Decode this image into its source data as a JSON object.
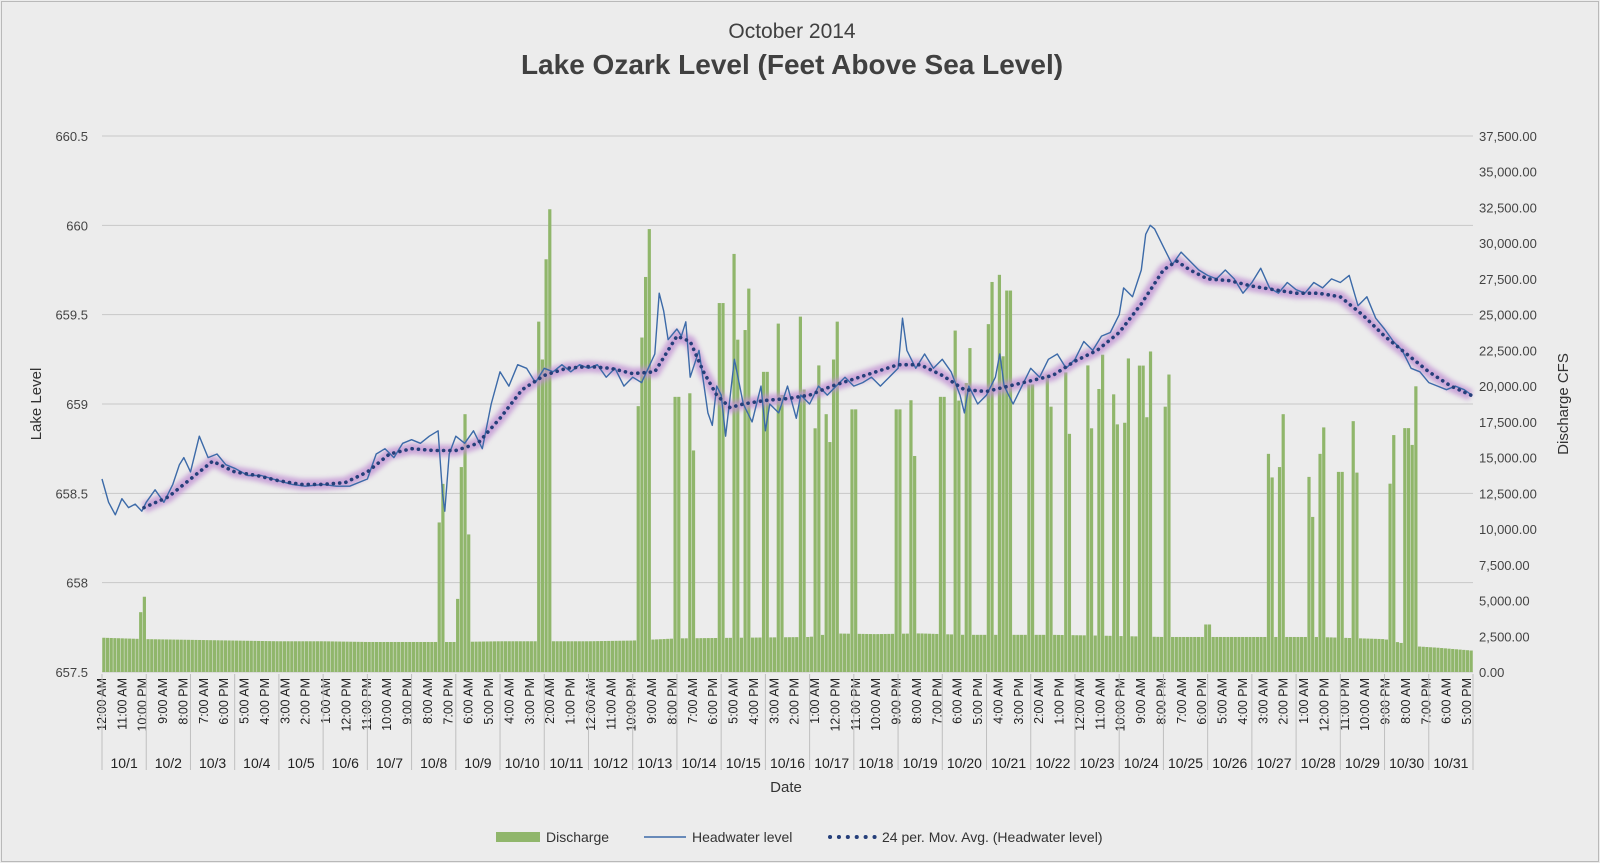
{
  "chart_data": {
    "type": "bar+line",
    "subtitle": "October 2014",
    "title": "Lake Ozark Level (Feet Above Sea Level)",
    "xlabel": "Date",
    "ylabel_left": "Lake Level",
    "ylabel_right": "Discharge CFS",
    "ylim_left": [
      657.5,
      660.5
    ],
    "ylim_right": [
      0,
      37500
    ],
    "yticks_left": [
      "657.5",
      "658",
      "658.5",
      "659",
      "659.5",
      "660",
      "660.5"
    ],
    "yticks_right": [
      "0.00",
      "2,500.00",
      "5,000.00",
      "7,500.00",
      "10,000.00",
      "12,500.00",
      "15,000.00",
      "17,500.00",
      "20,000.00",
      "22,500.00",
      "25,000.00",
      "27,500.00",
      "30,000.00",
      "32,500.00",
      "35,000.00",
      "37,500.00"
    ],
    "time_tick_labels": [
      "12:00 AM",
      "11:00 AM",
      "10:00 PM",
      "9:00 AM",
      "8:00 PM",
      "7:00 AM",
      "6:00 PM",
      "5:00 AM",
      "4:00 PM",
      "3:00 AM",
      "2:00 PM",
      "1:00 AM",
      "12:00 PM",
      "11:00 PM",
      "10:00 AM",
      "9:00 PM",
      "8:00 AM",
      "7:00 PM",
      "6:00 AM",
      "5:00 PM",
      "4:00 AM",
      "3:00 PM",
      "2:00 AM",
      "1:00 PM",
      "12:00 AM",
      "11:00 AM",
      "10:00 PM",
      "9:00 AM",
      "8:00 PM",
      "7:00 AM",
      "6:00 PM",
      "5:00 AM",
      "4:00 PM",
      "3:00 AM",
      "2:00 PM",
      "1:00 AM",
      "12:00 PM",
      "11:00 PM",
      "10:00 AM",
      "9:00 PM",
      "8:00 AM",
      "7:00 PM",
      "6:00 AM",
      "5:00 PM",
      "4:00 AM",
      "3:00 PM",
      "2:00 AM",
      "1:00 PM",
      "12:00 AM",
      "11:00 AM",
      "10:00 PM",
      "9:00 AM",
      "8:00 PM",
      "7:00 AM",
      "6:00 PM",
      "5:00 AM",
      "4:00 PM",
      "3:00 AM",
      "2:00 PM",
      "1:00 AM",
      "12:00 PM",
      "11:00 PM",
      "10:00 AM",
      "9:00 PM",
      "8:00 AM",
      "7:00 PM",
      "6:00 AM",
      "5:00 PM"
    ],
    "days": [
      "10/1",
      "10/2",
      "10/3",
      "10/4",
      "10/5",
      "10/6",
      "10/7",
      "10/8",
      "10/9",
      "10/10",
      "10/11",
      "10/12",
      "10/13",
      "10/14",
      "10/15",
      "10/16",
      "10/17",
      "10/18",
      "10/19",
      "10/20",
      "10/21",
      "10/22",
      "10/23",
      "10/24",
      "10/25",
      "10/26",
      "10/27",
      "10/28",
      "10/29",
      "10/30",
      "10/31"
    ],
    "legend": [
      "Discharge",
      "Headwater level",
      "24 per. Mov. Avg. (Headwater level)"
    ],
    "legend_position": "bottom",
    "grid": true,
    "headwater_daily": [
      [
        0.0,
        658.58
      ],
      [
        0.15,
        658.45
      ],
      [
        0.3,
        658.38
      ],
      [
        0.45,
        658.47
      ],
      [
        0.6,
        658.42
      ],
      [
        0.75,
        658.44
      ],
      [
        0.9,
        658.4
      ],
      [
        1.0,
        658.45
      ],
      [
        1.2,
        658.52
      ],
      [
        1.4,
        658.45
      ],
      [
        1.6,
        658.55
      ],
      [
        1.75,
        658.66
      ],
      [
        1.85,
        658.7
      ],
      [
        2.0,
        658.62
      ],
      [
        2.2,
        658.82
      ],
      [
        2.4,
        658.7
      ],
      [
        2.6,
        658.72
      ],
      [
        2.8,
        658.66
      ],
      [
        3.0,
        658.64
      ],
      [
        3.3,
        658.6
      ],
      [
        3.6,
        658.6
      ],
      [
        4.0,
        658.57
      ],
      [
        4.3,
        658.55
      ],
      [
        4.6,
        658.54
      ],
      [
        5.0,
        658.55
      ],
      [
        5.3,
        658.54
      ],
      [
        5.6,
        658.54
      ],
      [
        6.0,
        658.58
      ],
      [
        6.2,
        658.72
      ],
      [
        6.4,
        658.75
      ],
      [
        6.6,
        658.7
      ],
      [
        6.8,
        658.78
      ],
      [
        7.0,
        658.8
      ],
      [
        7.2,
        658.78
      ],
      [
        7.4,
        658.82
      ],
      [
        7.6,
        658.85
      ],
      [
        7.7,
        658.5
      ],
      [
        7.75,
        658.4
      ],
      [
        7.85,
        658.72
      ],
      [
        8.0,
        658.82
      ],
      [
        8.2,
        658.78
      ],
      [
        8.4,
        658.85
      ],
      [
        8.6,
        658.75
      ],
      [
        8.8,
        659.0
      ],
      [
        9.0,
        659.18
      ],
      [
        9.2,
        659.1
      ],
      [
        9.4,
        659.22
      ],
      [
        9.6,
        659.2
      ],
      [
        9.8,
        659.12
      ],
      [
        10.0,
        659.2
      ],
      [
        10.2,
        659.18
      ],
      [
        10.4,
        659.22
      ],
      [
        10.6,
        659.18
      ],
      [
        10.8,
        659.22
      ],
      [
        11.0,
        659.2
      ],
      [
        11.2,
        659.22
      ],
      [
        11.4,
        659.15
      ],
      [
        11.6,
        659.2
      ],
      [
        11.8,
        659.1
      ],
      [
        12.0,
        659.15
      ],
      [
        12.2,
        659.12
      ],
      [
        12.35,
        659.2
      ],
      [
        12.5,
        659.28
      ],
      [
        12.6,
        659.62
      ],
      [
        12.7,
        659.52
      ],
      [
        12.8,
        659.36
      ],
      [
        13.0,
        659.42
      ],
      [
        13.1,
        659.38
      ],
      [
        13.2,
        659.46
      ],
      [
        13.3,
        659.15
      ],
      [
        13.5,
        659.3
      ],
      [
        13.7,
        658.95
      ],
      [
        13.8,
        658.88
      ],
      [
        13.9,
        659.1
      ],
      [
        14.0,
        659.05
      ],
      [
        14.1,
        658.82
      ],
      [
        14.3,
        659.25
      ],
      [
        14.5,
        659.0
      ],
      [
        14.7,
        658.9
      ],
      [
        14.9,
        659.1
      ],
      [
        15.0,
        658.85
      ],
      [
        15.1,
        659.0
      ],
      [
        15.3,
        658.95
      ],
      [
        15.5,
        659.1
      ],
      [
        15.7,
        658.92
      ],
      [
        15.8,
        659.05
      ],
      [
        16.0,
        659.0
      ],
      [
        16.2,
        659.1
      ],
      [
        16.4,
        659.05
      ],
      [
        16.6,
        659.1
      ],
      [
        16.8,
        659.15
      ],
      [
        17.0,
        659.1
      ],
      [
        17.2,
        659.12
      ],
      [
        17.4,
        659.15
      ],
      [
        17.6,
        659.1
      ],
      [
        17.8,
        659.15
      ],
      [
        18.0,
        659.2
      ],
      [
        18.1,
        659.48
      ],
      [
        18.2,
        659.3
      ],
      [
        18.4,
        659.2
      ],
      [
        18.6,
        659.28
      ],
      [
        18.8,
        659.2
      ],
      [
        19.0,
        659.25
      ],
      [
        19.2,
        659.18
      ],
      [
        19.4,
        659.05
      ],
      [
        19.5,
        658.95
      ],
      [
        19.6,
        659.1
      ],
      [
        19.8,
        659.0
      ],
      [
        20.0,
        659.05
      ],
      [
        20.2,
        659.15
      ],
      [
        20.3,
        659.28
      ],
      [
        20.4,
        659.1
      ],
      [
        20.6,
        659.0
      ],
      [
        20.8,
        659.1
      ],
      [
        21.0,
        659.2
      ],
      [
        21.2,
        659.15
      ],
      [
        21.4,
        659.25
      ],
      [
        21.6,
        659.28
      ],
      [
        21.8,
        659.2
      ],
      [
        22.0,
        659.25
      ],
      [
        22.2,
        659.35
      ],
      [
        22.4,
        659.3
      ],
      [
        22.6,
        659.38
      ],
      [
        22.8,
        659.4
      ],
      [
        23.0,
        659.5
      ],
      [
        23.1,
        659.65
      ],
      [
        23.3,
        659.6
      ],
      [
        23.5,
        659.75
      ],
      [
        23.6,
        659.95
      ],
      [
        23.7,
        660.0
      ],
      [
        23.8,
        659.98
      ],
      [
        24.0,
        659.88
      ],
      [
        24.2,
        659.78
      ],
      [
        24.4,
        659.85
      ],
      [
        24.6,
        659.8
      ],
      [
        24.8,
        659.75
      ],
      [
        25.0,
        659.72
      ],
      [
        25.2,
        659.7
      ],
      [
        25.4,
        659.75
      ],
      [
        25.6,
        659.7
      ],
      [
        25.8,
        659.62
      ],
      [
        26.0,
        659.68
      ],
      [
        26.2,
        659.76
      ],
      [
        26.4,
        659.65
      ],
      [
        26.6,
        659.62
      ],
      [
        26.8,
        659.68
      ],
      [
        27.0,
        659.64
      ],
      [
        27.2,
        659.62
      ],
      [
        27.4,
        659.68
      ],
      [
        27.6,
        659.65
      ],
      [
        27.8,
        659.7
      ],
      [
        28.0,
        659.68
      ],
      [
        28.2,
        659.72
      ],
      [
        28.4,
        659.55
      ],
      [
        28.6,
        659.6
      ],
      [
        28.8,
        659.48
      ],
      [
        29.0,
        659.42
      ],
      [
        29.2,
        659.35
      ],
      [
        29.4,
        659.3
      ],
      [
        29.6,
        659.2
      ],
      [
        29.8,
        659.18
      ],
      [
        30.0,
        659.12
      ],
      [
        30.2,
        659.1
      ],
      [
        30.4,
        659.08
      ],
      [
        30.6,
        659.1
      ],
      [
        30.8,
        659.08
      ],
      [
        30.97,
        659.05
      ]
    ],
    "moving_average_daily": [
      [
        0.95,
        658.42
      ],
      [
        1.5,
        658.48
      ],
      [
        2.0,
        658.58
      ],
      [
        2.5,
        658.68
      ],
      [
        3.0,
        658.62
      ],
      [
        3.5,
        658.6
      ],
      [
        4.0,
        658.57
      ],
      [
        4.5,
        658.55
      ],
      [
        5.0,
        658.55
      ],
      [
        5.5,
        658.56
      ],
      [
        6.0,
        658.62
      ],
      [
        6.5,
        658.72
      ],
      [
        7.0,
        658.75
      ],
      [
        7.5,
        658.74
      ],
      [
        8.0,
        658.74
      ],
      [
        8.5,
        658.78
      ],
      [
        9.0,
        658.92
      ],
      [
        9.5,
        659.08
      ],
      [
        10.0,
        659.16
      ],
      [
        10.5,
        659.2
      ],
      [
        11.0,
        659.21
      ],
      [
        11.5,
        659.2
      ],
      [
        12.0,
        659.17
      ],
      [
        12.5,
        659.18
      ],
      [
        13.0,
        659.38
      ],
      [
        13.3,
        659.35
      ],
      [
        13.6,
        659.18
      ],
      [
        13.9,
        659.05
      ],
      [
        14.2,
        658.98
      ],
      [
        14.5,
        659.0
      ],
      [
        15.0,
        659.02
      ],
      [
        15.5,
        659.03
      ],
      [
        16.0,
        659.05
      ],
      [
        16.5,
        659.1
      ],
      [
        17.0,
        659.14
      ],
      [
        17.5,
        659.18
      ],
      [
        18.0,
        659.22
      ],
      [
        18.5,
        659.22
      ],
      [
        19.0,
        659.16
      ],
      [
        19.5,
        659.08
      ],
      [
        20.0,
        659.07
      ],
      [
        20.5,
        659.1
      ],
      [
        21.0,
        659.13
      ],
      [
        21.5,
        659.16
      ],
      [
        22.0,
        659.24
      ],
      [
        22.5,
        659.3
      ],
      [
        23.0,
        659.4
      ],
      [
        23.5,
        659.56
      ],
      [
        24.0,
        659.75
      ],
      [
        24.3,
        659.8
      ],
      [
        24.6,
        659.75
      ],
      [
        25.0,
        659.7
      ],
      [
        25.5,
        659.69
      ],
      [
        26.0,
        659.66
      ],
      [
        26.5,
        659.64
      ],
      [
        27.0,
        659.62
      ],
      [
        27.5,
        659.62
      ],
      [
        28.0,
        659.6
      ],
      [
        28.5,
        659.5
      ],
      [
        29.0,
        659.38
      ],
      [
        29.5,
        659.28
      ],
      [
        30.0,
        659.18
      ],
      [
        30.5,
        659.1
      ],
      [
        30.95,
        659.05
      ]
    ],
    "discharge_base": [
      [
        0.0,
        2400
      ],
      [
        1.0,
        2300
      ],
      [
        2.0,
        2250
      ],
      [
        3.0,
        2200
      ],
      [
        4.0,
        2150
      ],
      [
        5.0,
        2150
      ],
      [
        6.0,
        2100
      ],
      [
        7.0,
        2100
      ],
      [
        8.0,
        2100
      ],
      [
        9.0,
        2150
      ],
      [
        10.0,
        2150
      ],
      [
        11.0,
        2150
      ],
      [
        12.0,
        2200
      ],
      [
        13.0,
        2350
      ],
      [
        16.0,
        2450
      ],
      [
        16.5,
        2700
      ],
      [
        17.5,
        2650
      ],
      [
        18.5,
        2700
      ],
      [
        19.5,
        2600
      ],
      [
        21.5,
        2600
      ],
      [
        22.5,
        2550
      ],
      [
        24.0,
        2450
      ],
      [
        25.0,
        2450
      ],
      [
        26.5,
        2450
      ],
      [
        27.5,
        2450
      ],
      [
        28.0,
        2400
      ],
      [
        29.0,
        2300
      ],
      [
        29.7,
        1800
      ],
      [
        30.2,
        1700
      ],
      [
        30.97,
        1500
      ]
    ],
    "discharge_peaks": [
      [
        0.95,
        5400
      ],
      [
        7.7,
        13500
      ],
      [
        8.1,
        6200
      ],
      [
        8.2,
        18500
      ],
      [
        8.25,
        11000
      ],
      [
        9.9,
        26500
      ],
      [
        10.0,
        21000
      ],
      [
        10.1,
        35000
      ],
      [
        12.2,
        24000
      ],
      [
        12.35,
        33500
      ],
      [
        13.0,
        22000
      ],
      [
        13.3,
        20000
      ],
      [
        14.0,
        29500
      ],
      [
        14.3,
        30000
      ],
      [
        14.6,
        29000
      ],
      [
        15.0,
        24000
      ],
      [
        15.3,
        25000
      ],
      [
        15.8,
        25500
      ],
      [
        16.2,
        22000
      ],
      [
        16.4,
        19500
      ],
      [
        16.6,
        26500
      ],
      [
        17.0,
        21000
      ],
      [
        18.0,
        21000
      ],
      [
        18.3,
        19500
      ],
      [
        19.0,
        22000
      ],
      [
        19.3,
        24500
      ],
      [
        19.6,
        24500
      ],
      [
        20.1,
        29500
      ],
      [
        20.3,
        28500
      ],
      [
        20.5,
        30500
      ],
      [
        21.0,
        23000
      ],
      [
        21.4,
        22500
      ],
      [
        21.8,
        21500
      ],
      [
        22.3,
        22000
      ],
      [
        22.6,
        24000
      ],
      [
        22.9,
        21000
      ],
      [
        23.2,
        22500
      ],
      [
        23.5,
        24500
      ],
      [
        23.7,
        23000
      ],
      [
        24.1,
        22500
      ],
      [
        25.0,
        3800
      ],
      [
        26.4,
        16500
      ],
      [
        26.7,
        18500
      ],
      [
        27.3,
        14000
      ],
      [
        27.6,
        18500
      ],
      [
        28.0,
        16000
      ],
      [
        28.3,
        18000
      ],
      [
        29.2,
        17000
      ],
      [
        29.5,
        19500
      ],
      [
        29.7,
        20500
      ]
    ]
  }
}
